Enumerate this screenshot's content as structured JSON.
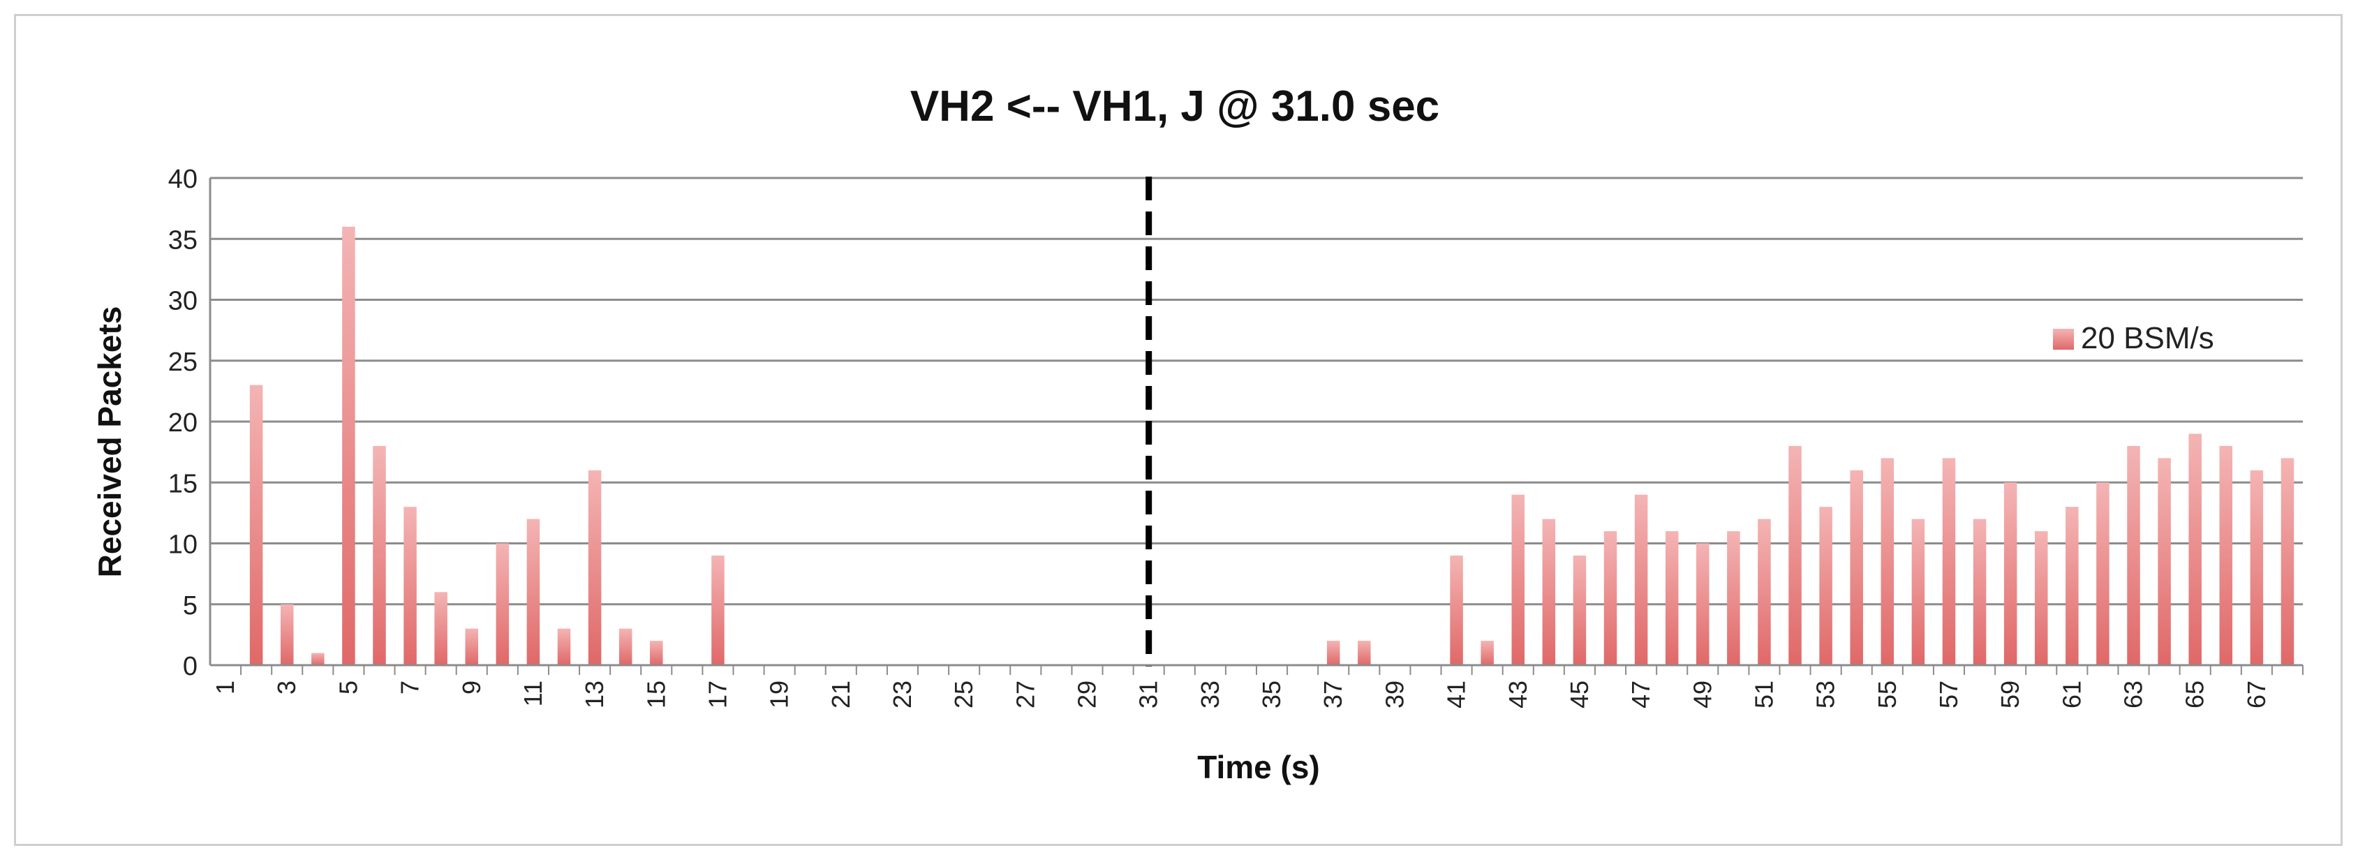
{
  "chart_data": {
    "type": "bar",
    "title": "VH2 <-- VH1, J @ 31.0 sec",
    "xlabel": "Time (s)",
    "ylabel": "Received Packets",
    "ylim": [
      0,
      40
    ],
    "yticks": [
      0,
      5,
      10,
      15,
      20,
      25,
      30,
      35,
      40
    ],
    "grid": true,
    "legend_position": "right",
    "bar_color": "#e87d7d",
    "marker_line": {
      "x": 31,
      "style": "dashed",
      "color": "#000000"
    },
    "categories": [
      1,
      2,
      3,
      4,
      5,
      6,
      7,
      8,
      9,
      10,
      11,
      12,
      13,
      14,
      15,
      16,
      17,
      18,
      19,
      20,
      21,
      22,
      23,
      24,
      25,
      26,
      27,
      28,
      29,
      30,
      31,
      32,
      33,
      34,
      35,
      36,
      37,
      38,
      39,
      40,
      41,
      42,
      43,
      44,
      45,
      46,
      47,
      48,
      49,
      50,
      51,
      52,
      53,
      54,
      55,
      56,
      57,
      58,
      59,
      60,
      61,
      62,
      63,
      64,
      65,
      66,
      67,
      68
    ],
    "tick_labels": [
      "1",
      "3",
      "5",
      "7",
      "9",
      "11",
      "13",
      "15",
      "17",
      "19",
      "21",
      "23",
      "25",
      "27",
      "29",
      "31",
      "33",
      "35",
      "37",
      "39",
      "41",
      "43",
      "45",
      "47",
      "49",
      "51",
      "53",
      "55",
      "57",
      "59",
      "61",
      "63",
      "65",
      "67"
    ],
    "series": [
      {
        "name": "20 BSM/s",
        "values": [
          0,
          23,
          5,
          1,
          36,
          18,
          13,
          6,
          3,
          10,
          12,
          3,
          16,
          3,
          2,
          0,
          9,
          0,
          0,
          0,
          0,
          0,
          0,
          0,
          0,
          0,
          0,
          0,
          0,
          0,
          0,
          0,
          0,
          0,
          0,
          0,
          2,
          2,
          0,
          0,
          9,
          2,
          14,
          12,
          9,
          11,
          14,
          11,
          10,
          11,
          12,
          18,
          13,
          16,
          17,
          12,
          17,
          12,
          15,
          11,
          13,
          15,
          18,
          17,
          19,
          18,
          16,
          17
        ]
      }
    ]
  }
}
